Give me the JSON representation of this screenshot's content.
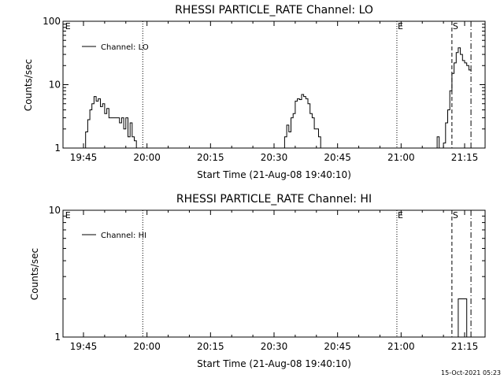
{
  "footer": {
    "timestamp": "15-Oct-2021 05:23"
  },
  "chart_data": [
    {
      "type": "line",
      "title": "RHESSI PARTICLE_RATE Channel: LO",
      "xlabel": "Start Time (21-Aug-08 19:40:10)",
      "ylabel": "Counts/sec",
      "yscale": "log",
      "xlim": [
        "19:40:10",
        "21:19:50"
      ],
      "ylim": [
        1,
        100
      ],
      "xticks": [
        "19:45",
        "20:00",
        "20:15",
        "20:30",
        "20:45",
        "21:00",
        "21:15"
      ],
      "yticks": [
        "1",
        "10",
        "100"
      ],
      "legend": "top-left",
      "series": [
        {
          "name": "Channel: LO",
          "x": [
            "19:40:10",
            "19:45:00",
            "19:45:30",
            "19:46:00",
            "19:46:30",
            "19:47:00",
            "19:47:30",
            "19:48:00",
            "19:48:30",
            "19:49:00",
            "19:49:30",
            "19:50:00",
            "19:50:30",
            "19:51:00",
            "19:51:30",
            "19:52:00",
            "19:52:30",
            "19:53:00",
            "19:53:30",
            "19:54:00",
            "19:54:30",
            "19:55:00",
            "19:55:30",
            "19:56:00",
            "19:56:30",
            "19:57:00",
            "19:57:30",
            "20:00:00",
            "20:30:00",
            "20:32:30",
            "20:33:00",
            "20:33:30",
            "20:34:00",
            "20:34:30",
            "20:35:00",
            "20:35:30",
            "20:36:00",
            "20:36:30",
            "20:37:00",
            "20:37:30",
            "20:38:00",
            "20:38:30",
            "20:39:00",
            "20:39:30",
            "20:40:00",
            "20:40:30",
            "20:41:00",
            "20:50:00",
            "21:08:00",
            "21:08:30",
            "21:09:00",
            "21:10:00",
            "21:10:30",
            "21:11:00",
            "21:11:30",
            "21:12:00",
            "21:12:30",
            "21:13:00",
            "21:13:30",
            "21:14:00",
            "21:14:30",
            "21:15:00",
            "21:15:30",
            "21:16:00",
            "21:16:30"
          ],
          "y": [
            1,
            1,
            1.8,
            2.8,
            4,
            5,
            6.5,
            5.5,
            6,
            4.5,
            5,
            3.5,
            4.2,
            3,
            3,
            3,
            3,
            3,
            2.5,
            3,
            2,
            3,
            1.5,
            2.5,
            1.5,
            1.3,
            1,
            1,
            1,
            1.5,
            2.3,
            1.8,
            3,
            3.5,
            5.5,
            6,
            5.8,
            7,
            6.5,
            6,
            5,
            3.5,
            3,
            2,
            2,
            1.5,
            1,
            1,
            1,
            1.5,
            1,
            1.2,
            2.5,
            4,
            8,
            15,
            22,
            32,
            38,
            30,
            24,
            22,
            20,
            17,
            16
          ]
        }
      ],
      "markers": [
        {
          "label": "E",
          "time": "19:40:30",
          "style": "none"
        },
        {
          "label": "",
          "time": "19:59:00",
          "style": "dotted"
        },
        {
          "label": "E",
          "time": "20:59:00",
          "style": "dotted"
        },
        {
          "label": "S",
          "time": "21:12:00",
          "style": "dashed"
        },
        {
          "label": "",
          "time": "21:16:30",
          "style": "dash-dot"
        }
      ]
    },
    {
      "type": "line",
      "title": "RHESSI PARTICLE_RATE Channel: HI",
      "xlabel": "Start Time (21-Aug-08 19:40:10)",
      "ylabel": "Counts/sec",
      "yscale": "log",
      "xlim": [
        "19:40:10",
        "21:19:50"
      ],
      "ylim": [
        1,
        10
      ],
      "xticks": [
        "19:45",
        "20:00",
        "20:15",
        "20:30",
        "20:45",
        "21:00",
        "21:15"
      ],
      "yticks": [
        "1",
        "10"
      ],
      "legend": "top-left",
      "series": [
        {
          "name": "Channel: HI",
          "x": [
            "19:40:10",
            "21:13:00",
            "21:13:30",
            "21:14:00",
            "21:14:30",
            "21:15:00",
            "21:15:30",
            "21:19:50"
          ],
          "y": [
            1,
            1,
            2,
            2,
            2,
            2,
            1,
            1
          ]
        }
      ],
      "markers": [
        {
          "label": "E",
          "time": "19:40:30",
          "style": "none"
        },
        {
          "label": "",
          "time": "19:59:00",
          "style": "dotted"
        },
        {
          "label": "E",
          "time": "20:59:00",
          "style": "dotted"
        },
        {
          "label": "S",
          "time": "21:12:00",
          "style": "dashed"
        },
        {
          "label": "",
          "time": "21:16:30",
          "style": "dash-dot"
        }
      ]
    }
  ]
}
